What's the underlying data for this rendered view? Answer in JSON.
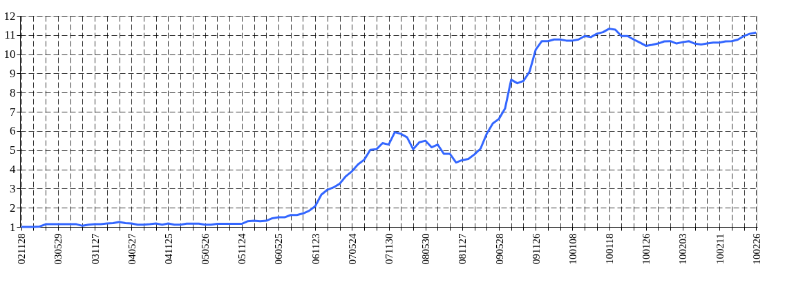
{
  "chart_data": {
    "type": "line",
    "categories": [
      "021128",
      null,
      null,
      null,
      null,
      null,
      "030529",
      null,
      null,
      null,
      null,
      null,
      "031127",
      null,
      null,
      null,
      null,
      null,
      "040527",
      null,
      null,
      null,
      null,
      null,
      "041125",
      null,
      null,
      null,
      null,
      null,
      "050526",
      null,
      null,
      null,
      null,
      null,
      "051124",
      null,
      null,
      null,
      null,
      null,
      "060525",
      null,
      null,
      null,
      null,
      null,
      "061123",
      null,
      null,
      null,
      null,
      null,
      "070524",
      null,
      null,
      null,
      null,
      null,
      "071130",
      null,
      null,
      null,
      null,
      null,
      "080530",
      null,
      null,
      null,
      null,
      null,
      "081127",
      null,
      null,
      null,
      null,
      null,
      "090528",
      null,
      null,
      null,
      null,
      null,
      "091126",
      null,
      null,
      null,
      null,
      null,
      "100108",
      null,
      null,
      null,
      null,
      null,
      "100118",
      null,
      null,
      null,
      null,
      null,
      "100126",
      null,
      null,
      null,
      null,
      null,
      "100203",
      null,
      null,
      null,
      null,
      null,
      "100211",
      null,
      null,
      null,
      null,
      null,
      "100226"
    ],
    "series": [
      {
        "color": "#3366ff",
        "values": [
          1.0,
          1.0,
          1.0,
          1.02,
          1.14,
          1.14,
          1.14,
          1.14,
          1.14,
          1.14,
          1.06,
          1.12,
          1.14,
          1.14,
          1.18,
          1.2,
          1.26,
          1.2,
          1.18,
          1.12,
          1.12,
          1.14,
          1.18,
          1.12,
          1.18,
          1.12,
          1.12,
          1.17,
          1.17,
          1.17,
          1.12,
          1.12,
          1.16,
          1.16,
          1.16,
          1.16,
          1.16,
          1.3,
          1.32,
          1.3,
          1.32,
          1.45,
          1.5,
          1.5,
          1.62,
          1.62,
          1.7,
          1.84,
          2.08,
          2.68,
          2.94,
          3.06,
          3.25,
          3.64,
          3.9,
          4.26,
          4.5,
          5.02,
          5.05,
          5.37,
          5.29,
          5.94,
          5.85,
          5.67,
          5.05,
          5.41,
          5.49,
          5.15,
          5.29,
          4.81,
          4.81,
          4.36,
          4.48,
          4.54,
          4.78,
          5.08,
          5.85,
          6.39,
          6.63,
          7.17,
          8.67,
          8.49,
          8.61,
          9.09,
          10.23,
          10.68,
          10.68,
          10.77,
          10.77,
          10.71,
          10.71,
          10.77,
          10.95,
          10.89,
          11.07,
          11.15,
          11.33,
          11.28,
          10.95,
          10.95,
          10.77,
          10.61,
          10.44,
          10.49,
          10.56,
          10.67,
          10.68,
          10.56,
          10.63,
          10.68,
          10.55,
          10.51,
          10.56,
          10.61,
          10.61,
          10.67,
          10.68,
          10.76,
          10.95,
          11.07,
          11.13
        ]
      }
    ],
    "ylim": [
      1,
      12
    ],
    "yticks": [
      1,
      2,
      3,
      4,
      5,
      6,
      7,
      8,
      9,
      10,
      11,
      12
    ],
    "grid": true,
    "marker": "none",
    "line_style": "solid"
  }
}
